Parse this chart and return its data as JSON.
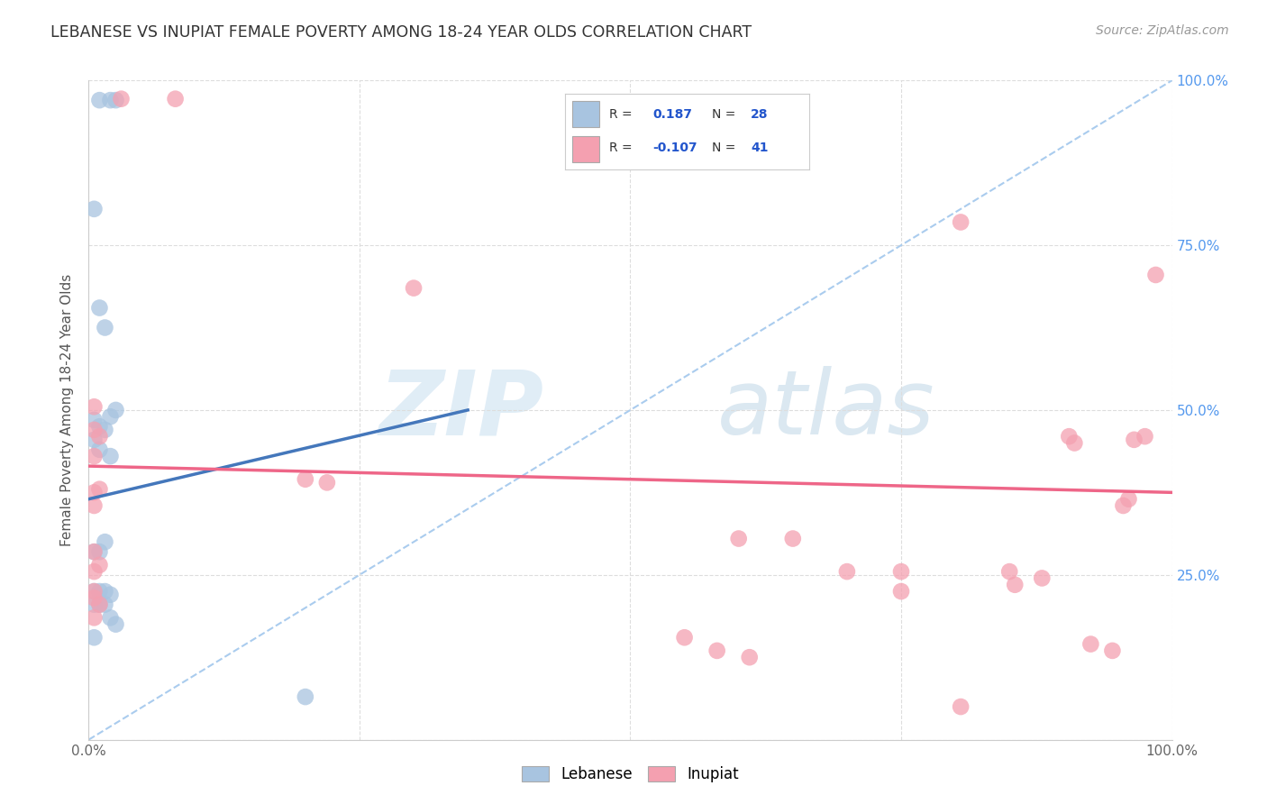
{
  "title": "LEBANESE VS INUPIAT FEMALE POVERTY AMONG 18-24 YEAR OLDS CORRELATION CHART",
  "source": "Source: ZipAtlas.com",
  "ylabel": "Female Poverty Among 18-24 Year Olds",
  "xlim": [
    0,
    1
  ],
  "ylim": [
    0,
    1
  ],
  "xticks": [
    0.0,
    0.25,
    0.5,
    0.75,
    1.0
  ],
  "yticks": [
    0.0,
    0.25,
    0.5,
    0.75,
    1.0
  ],
  "background_color": "#ffffff",
  "grid_color": "#dddddd",
  "watermark_zip": "ZIP",
  "watermark_atlas": "atlas",
  "legend_R_blue": "0.187",
  "legend_N_blue": "28",
  "legend_R_pink": "-0.107",
  "legend_N_pink": "41",
  "blue_color": "#a8c4e0",
  "pink_color": "#f4a0b0",
  "blue_line_color": "#4477bb",
  "pink_line_color": "#ee6688",
  "dashed_line_color": "#aaccee",
  "blue_line": {
    "x0": 0.0,
    "y0": 0.365,
    "x1": 0.35,
    "y1": 0.5
  },
  "pink_line": {
    "x0": 0.0,
    "y0": 0.415,
    "x1": 1.0,
    "y1": 0.375
  },
  "lebanese_points": [
    [
      0.01,
      0.97
    ],
    [
      0.02,
      0.97
    ],
    [
      0.025,
      0.97
    ],
    [
      0.005,
      0.805
    ],
    [
      0.01,
      0.655
    ],
    [
      0.015,
      0.625
    ],
    [
      0.005,
      0.485
    ],
    [
      0.01,
      0.475
    ],
    [
      0.015,
      0.47
    ],
    [
      0.02,
      0.49
    ],
    [
      0.025,
      0.5
    ],
    [
      0.005,
      0.455
    ],
    [
      0.01,
      0.44
    ],
    [
      0.02,
      0.43
    ],
    [
      0.005,
      0.285
    ],
    [
      0.01,
      0.285
    ],
    [
      0.015,
      0.3
    ],
    [
      0.005,
      0.225
    ],
    [
      0.01,
      0.225
    ],
    [
      0.015,
      0.225
    ],
    [
      0.02,
      0.22
    ],
    [
      0.005,
      0.205
    ],
    [
      0.01,
      0.205
    ],
    [
      0.015,
      0.205
    ],
    [
      0.02,
      0.185
    ],
    [
      0.025,
      0.175
    ],
    [
      0.005,
      0.155
    ],
    [
      0.2,
      0.065
    ]
  ],
  "inupiat_points": [
    [
      0.03,
      0.972
    ],
    [
      0.08,
      0.972
    ],
    [
      0.005,
      0.505
    ],
    [
      0.3,
      0.685
    ],
    [
      0.005,
      0.47
    ],
    [
      0.01,
      0.46
    ],
    [
      0.005,
      0.43
    ],
    [
      0.2,
      0.395
    ],
    [
      0.22,
      0.39
    ],
    [
      0.005,
      0.375
    ],
    [
      0.01,
      0.38
    ],
    [
      0.005,
      0.355
    ],
    [
      0.005,
      0.285
    ],
    [
      0.005,
      0.255
    ],
    [
      0.01,
      0.265
    ],
    [
      0.005,
      0.225
    ],
    [
      0.005,
      0.215
    ],
    [
      0.01,
      0.205
    ],
    [
      0.005,
      0.185
    ],
    [
      0.6,
      0.305
    ],
    [
      0.65,
      0.305
    ],
    [
      0.7,
      0.255
    ],
    [
      0.75,
      0.225
    ],
    [
      0.75,
      0.255
    ],
    [
      0.805,
      0.785
    ],
    [
      0.85,
      0.255
    ],
    [
      0.855,
      0.235
    ],
    [
      0.88,
      0.245
    ],
    [
      0.905,
      0.46
    ],
    [
      0.91,
      0.45
    ],
    [
      0.925,
      0.145
    ],
    [
      0.945,
      0.135
    ],
    [
      0.955,
      0.355
    ],
    [
      0.96,
      0.365
    ],
    [
      0.965,
      0.455
    ],
    [
      0.975,
      0.46
    ],
    [
      0.985,
      0.705
    ],
    [
      0.55,
      0.155
    ],
    [
      0.58,
      0.135
    ],
    [
      0.61,
      0.125
    ],
    [
      0.805,
      0.05
    ]
  ]
}
